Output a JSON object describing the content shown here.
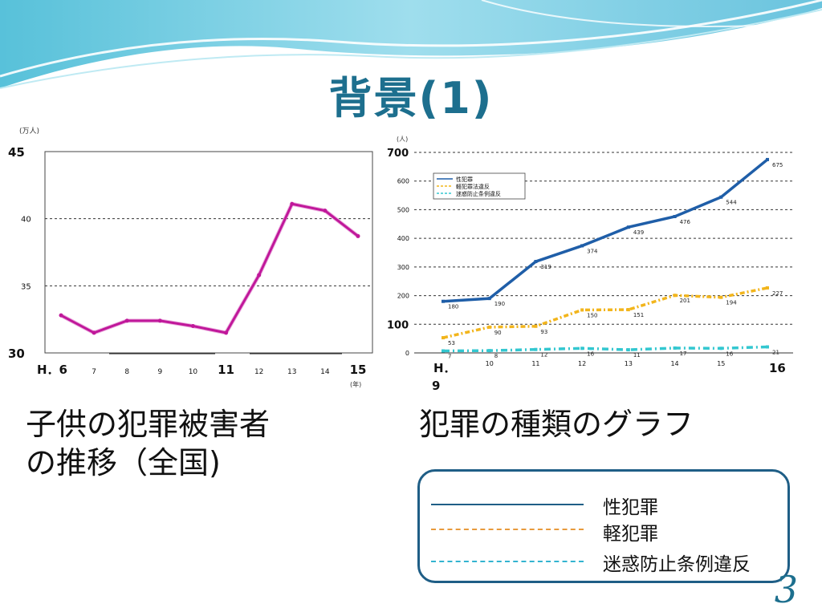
{
  "slide": {
    "title": "背景(1)",
    "number": "3"
  },
  "colors": {
    "title": "#1d6f8e",
    "line_left": "#c0189a",
    "series_sex": "#1f5ea8",
    "series_light": "#f2b51c",
    "series_nuisance": "#33c7d0",
    "legend_border": "#1f5e86"
  },
  "captions": {
    "left": [
      "子供の犯罪被害者",
      "の推移（全国)"
    ],
    "right": "犯罪の種類のグラフ"
  },
  "legend": {
    "items": [
      {
        "label": "性犯罪",
        "color": "#1f5e86",
        "style": "solid"
      },
      {
        "label": "軽犯罪",
        "color": "#e89a3c",
        "style": "dashed"
      },
      {
        "label": "迷惑防止条例違反",
        "color": "#33b4d0",
        "style": "dashdot"
      }
    ]
  },
  "chart_data": [
    {
      "type": "line",
      "unit_label": "(万人)",
      "x_unit_label": "(年)",
      "y_ticks": [
        {
          "value": 45,
          "label": "45",
          "large": true
        },
        {
          "value": 40,
          "label": "40",
          "large": false
        },
        {
          "value": 35,
          "label": "35",
          "large": false
        },
        {
          "value": 30,
          "label": "30",
          "large": true
        }
      ],
      "ylim": [
        30,
        45
      ],
      "x_ticks": [
        {
          "label": "H．6",
          "large": true
        },
        {
          "label": "7",
          "large": false
        },
        {
          "label": "8",
          "large": false
        },
        {
          "label": "9",
          "large": false
        },
        {
          "label": "10",
          "large": false
        },
        {
          "label": "11",
          "large": true
        },
        {
          "label": "12",
          "large": false
        },
        {
          "label": "13",
          "large": false
        },
        {
          "label": "14",
          "large": false
        },
        {
          "label": "15",
          "large": true
        }
      ],
      "x": [
        6,
        7,
        8,
        9,
        10,
        11,
        12,
        13,
        14,
        15
      ],
      "values": [
        32.8,
        31.5,
        32.4,
        32.4,
        32.0,
        31.5,
        35.8,
        41.1,
        40.6,
        38.7
      ]
    },
    {
      "type": "line",
      "unit_label": "(人)",
      "y_ticks": [
        {
          "value": 700,
          "label": "700",
          "large": true
        },
        {
          "value": 600,
          "label": "600",
          "large": false
        },
        {
          "value": 500,
          "label": "500",
          "large": false
        },
        {
          "value": 400,
          "label": "400",
          "large": false
        },
        {
          "value": 300,
          "label": "300",
          "large": false
        },
        {
          "value": 200,
          "label": "200",
          "large": false
        },
        {
          "value": 100,
          "label": "100",
          "large": true
        },
        {
          "value": 0,
          "label": "0",
          "large": false
        }
      ],
      "ylim": [
        0,
        700
      ],
      "x": [
        9,
        10,
        11,
        12,
        13,
        14,
        15,
        16
      ],
      "x_ticks": [
        {
          "label": "H．9",
          "large": true
        },
        {
          "label": "10",
          "large": false
        },
        {
          "label": "11",
          "large": false
        },
        {
          "label": "12",
          "large": false
        },
        {
          "label": "13",
          "large": false
        },
        {
          "label": "14",
          "large": false
        },
        {
          "label": "15",
          "large": false
        },
        {
          "label": "16",
          "large": true
        }
      ],
      "legend_entries": [
        "性犯罪",
        "軽犯罪法違反",
        "迷惑防止条例違反"
      ],
      "series": [
        {
          "name": "性犯罪",
          "values": [
            180,
            190,
            319,
            374,
            439,
            476,
            544,
            675
          ],
          "labels": [
            "180",
            "190",
            "319",
            "374",
            "439",
            "476",
            "544",
            "675"
          ]
        },
        {
          "name": "軽犯罪法違反",
          "values": [
            53,
            90,
            93,
            150,
            151,
            201,
            194,
            227
          ],
          "labels": [
            "53",
            "90",
            "93",
            "150",
            "151",
            "201",
            "194",
            "227"
          ]
        },
        {
          "name": "迷惑防止条例違反",
          "values": [
            7,
            8,
            12,
            16,
            11,
            17,
            16,
            21
          ],
          "labels": [
            "7",
            "8",
            "12",
            "16",
            "11",
            "17",
            "16",
            "21"
          ]
        }
      ]
    }
  ]
}
